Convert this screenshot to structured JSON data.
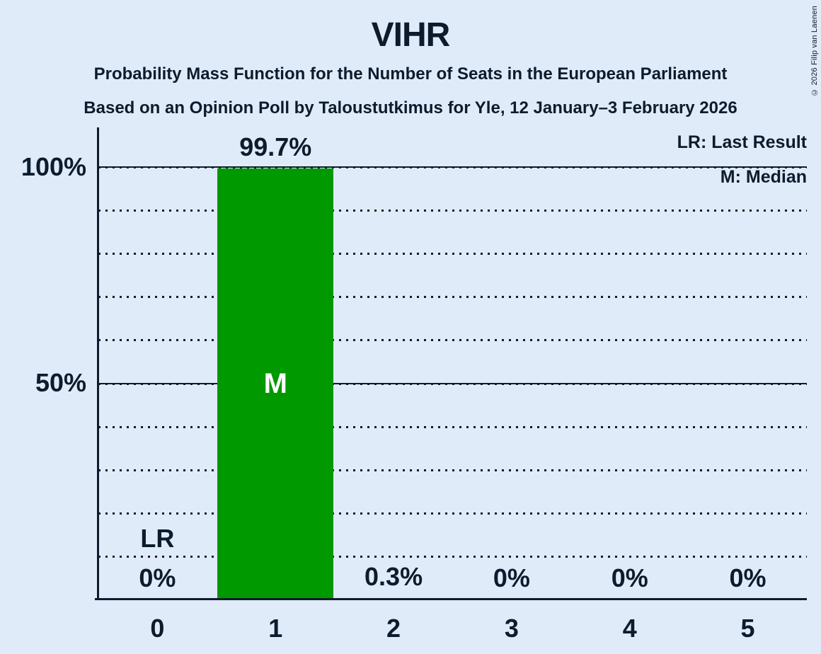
{
  "header": {
    "title": "VIHR",
    "subtitle1": "Probability Mass Function for the Number of Seats in the European Parliament",
    "subtitle2": "Based on an Opinion Poll by Taloustutkimus for Yle, 12 January–3 February 2026",
    "copyright": "© 2026 Filip van Laenen"
  },
  "legend": {
    "last_result": "LR: Last Result",
    "median": "M: Median"
  },
  "chart_data": {
    "type": "bar",
    "title": "VIHR",
    "categories": [
      "0",
      "1",
      "2",
      "3",
      "4",
      "5"
    ],
    "values": [
      0,
      99.7,
      0.3,
      0,
      0,
      0
    ],
    "value_labels": [
      "0%",
      "99.7%",
      "0.3%",
      "0%",
      "0%",
      "0%"
    ],
    "ylim": [
      0,
      100
    ],
    "yticks": [
      {
        "value": 100,
        "label": "100%"
      },
      {
        "value": 50,
        "label": "50%"
      }
    ],
    "gridlines": "dotted every 10%, solid lines at 50% and 100%",
    "legend_position": "top-right",
    "median_index": 1,
    "median_label": "M",
    "last_result_index": 0,
    "last_result_label": "LR",
    "bar_color": "#009900",
    "background_color": "#e0ebfa",
    "text_color": "#0c1c2c"
  }
}
